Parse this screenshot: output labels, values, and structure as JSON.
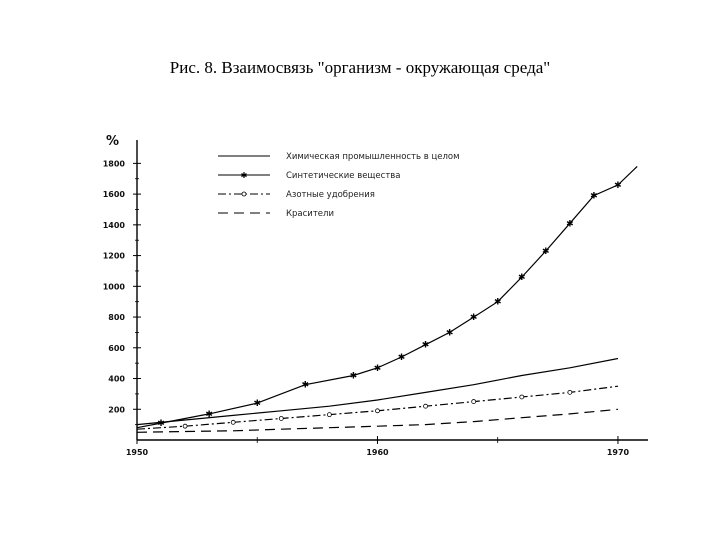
{
  "slide": {
    "title": "Рис. 8. Взаимосвязь \"организм - окружающая среда\""
  },
  "chart_data": {
    "type": "line",
    "title": "",
    "xlabel": "",
    "ylabel": "%",
    "xlim": [
      1950,
      1971
    ],
    "ylim": [
      0,
      1900
    ],
    "x_ticks": [
      "1950",
      "1960",
      "1970"
    ],
    "y_ticks": [
      "200",
      "400",
      "600",
      "800",
      "1000",
      "1200",
      "1400",
      "1600",
      "1800"
    ],
    "grid": false,
    "legend_position": "top-center",
    "series": [
      {
        "name": "Химическая промышленность в целом",
        "style": "solid",
        "marker": "none",
        "x": [
          1950,
          1952,
          1954,
          1956,
          1958,
          1960,
          1962,
          1964,
          1966,
          1968,
          1970
        ],
        "y": [
          100,
          130,
          160,
          190,
          220,
          260,
          310,
          360,
          420,
          470,
          530
        ]
      },
      {
        "name": "Синтетические вещества",
        "style": "solid",
        "marker": "star",
        "x": [
          1950,
          1951,
          1953,
          1955,
          1957,
          1959,
          1960,
          1961,
          1962,
          1963,
          1964,
          1965,
          1966,
          1967,
          1968,
          1969,
          1970,
          1970.8
        ],
        "y": [
          80,
          110,
          170,
          240,
          360,
          420,
          470,
          540,
          620,
          700,
          800,
          900,
          1060,
          1230,
          1410,
          1590,
          1660,
          1780
        ]
      },
      {
        "name": "Азотные удобрения",
        "style": "dash-dot",
        "marker": "circle",
        "x": [
          1950,
          1952,
          1954,
          1956,
          1958,
          1960,
          1962,
          1964,
          1966,
          1968,
          1970
        ],
        "y": [
          70,
          90,
          115,
          140,
          165,
          190,
          220,
          250,
          280,
          310,
          350
        ]
      },
      {
        "name": "Красители",
        "style": "long-dash",
        "marker": "none",
        "x": [
          1950,
          1952,
          1954,
          1956,
          1958,
          1960,
          1962,
          1964,
          1966,
          1968,
          1970
        ],
        "y": [
          50,
          55,
          60,
          70,
          80,
          90,
          100,
          120,
          145,
          170,
          200
        ]
      }
    ]
  },
  "colors": {
    "line": "#000000",
    "axis": "#000000",
    "background": "#ffffff"
  }
}
